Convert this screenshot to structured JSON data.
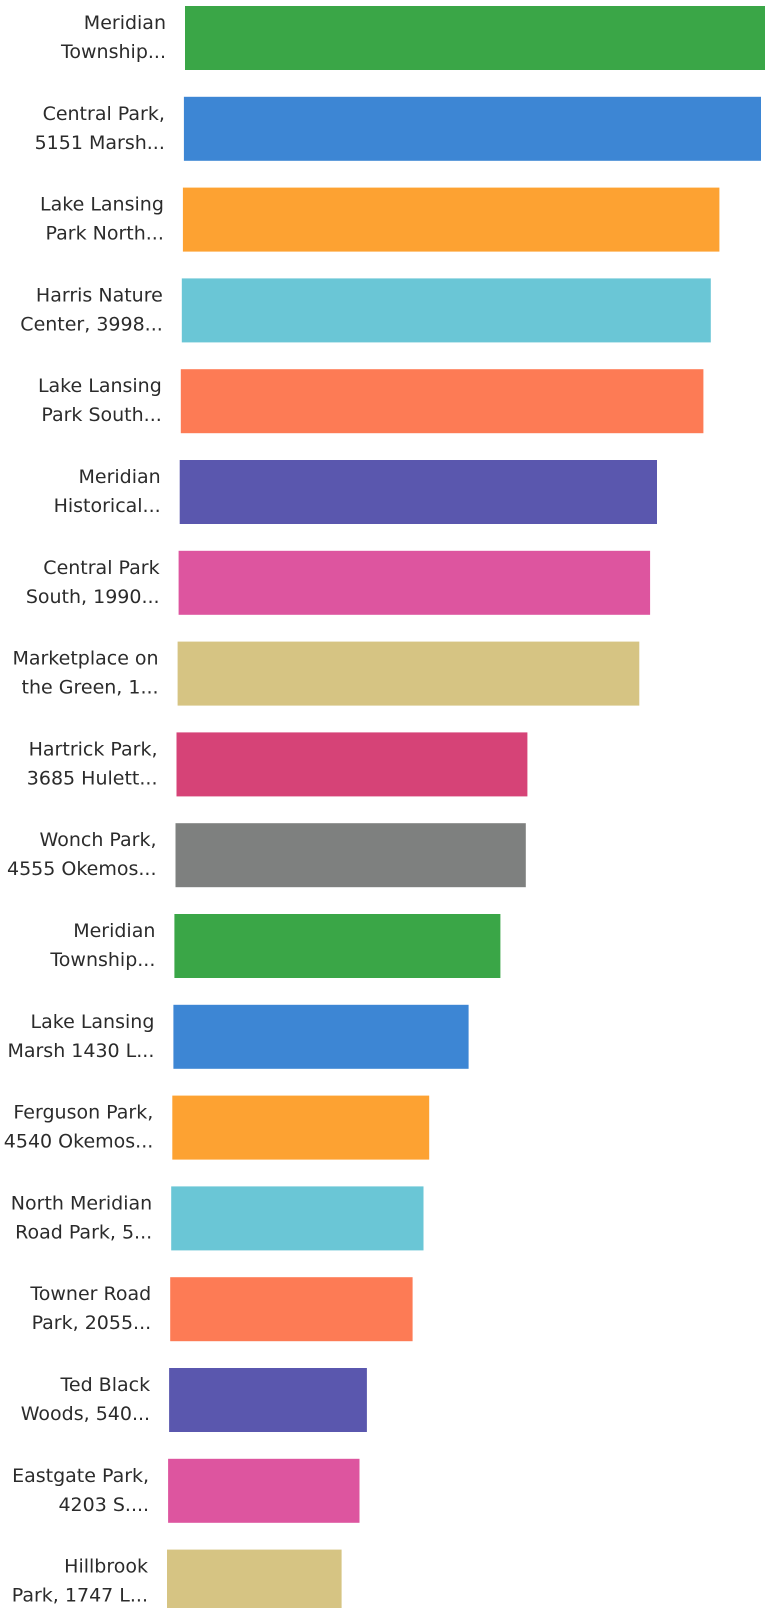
{
  "chart_data": {
    "type": "bar",
    "orientation": "horizontal",
    "grid": false,
    "legend": "none",
    "categories": [
      [
        "Meridian",
        "Township..."
      ],
      [
        "Central Park,",
        "5151 Marsh..."
      ],
      [
        "Lake Lansing",
        "Park North..."
      ],
      [
        "Harris Nature",
        "Center, 3998..."
      ],
      [
        "Lake Lansing",
        "Park South..."
      ],
      [
        "Meridian",
        "Historical..."
      ],
      [
        "Central Park",
        "South, 1990..."
      ],
      [
        "Marketplace on",
        "the Green, 1..."
      ],
      [
        "Hartrick Park,",
        "3685 Hulett..."
      ],
      [
        "Wonch Park,",
        "4555 Okemos..."
      ],
      [
        "Meridian",
        "Township..."
      ],
      [
        "Lake Lansing",
        "Marsh 1430 L..."
      ],
      [
        "Ferguson Park,",
        "4540 Okemos..."
      ],
      [
        "North Meridian",
        "Road Park, 5..."
      ],
      [
        "Towner Road",
        "Park, 2055..."
      ],
      [
        "Ted Black",
        "Woods, 540..."
      ],
      [
        "Eastgate Park,",
        "4203 S...."
      ],
      [
        "Hillbrook",
        "Park, 1747 L..."
      ]
    ],
    "values": [
      100,
      99.5,
      92.5,
      91.2,
      90.1,
      82.3,
      81.3,
      79.6,
      60.5,
      60.4,
      56.2,
      50.9,
      44.3,
      43.5,
      41.8,
      34.1,
      33.0,
      30.1
    ],
    "colors": [
      "#3aa647",
      "#3d86d4",
      "#fda232",
      "#6ac6d6",
      "#fd7b55",
      "#5a57ae",
      "#dd559f",
      "#d6c483",
      "#d64377",
      "#7e807f",
      "#3aa647",
      "#3d86d4",
      "#fda232",
      "#6ac6d6",
      "#fd7b55",
      "#5a57ae",
      "#dd559f",
      "#d6c483"
    ]
  }
}
